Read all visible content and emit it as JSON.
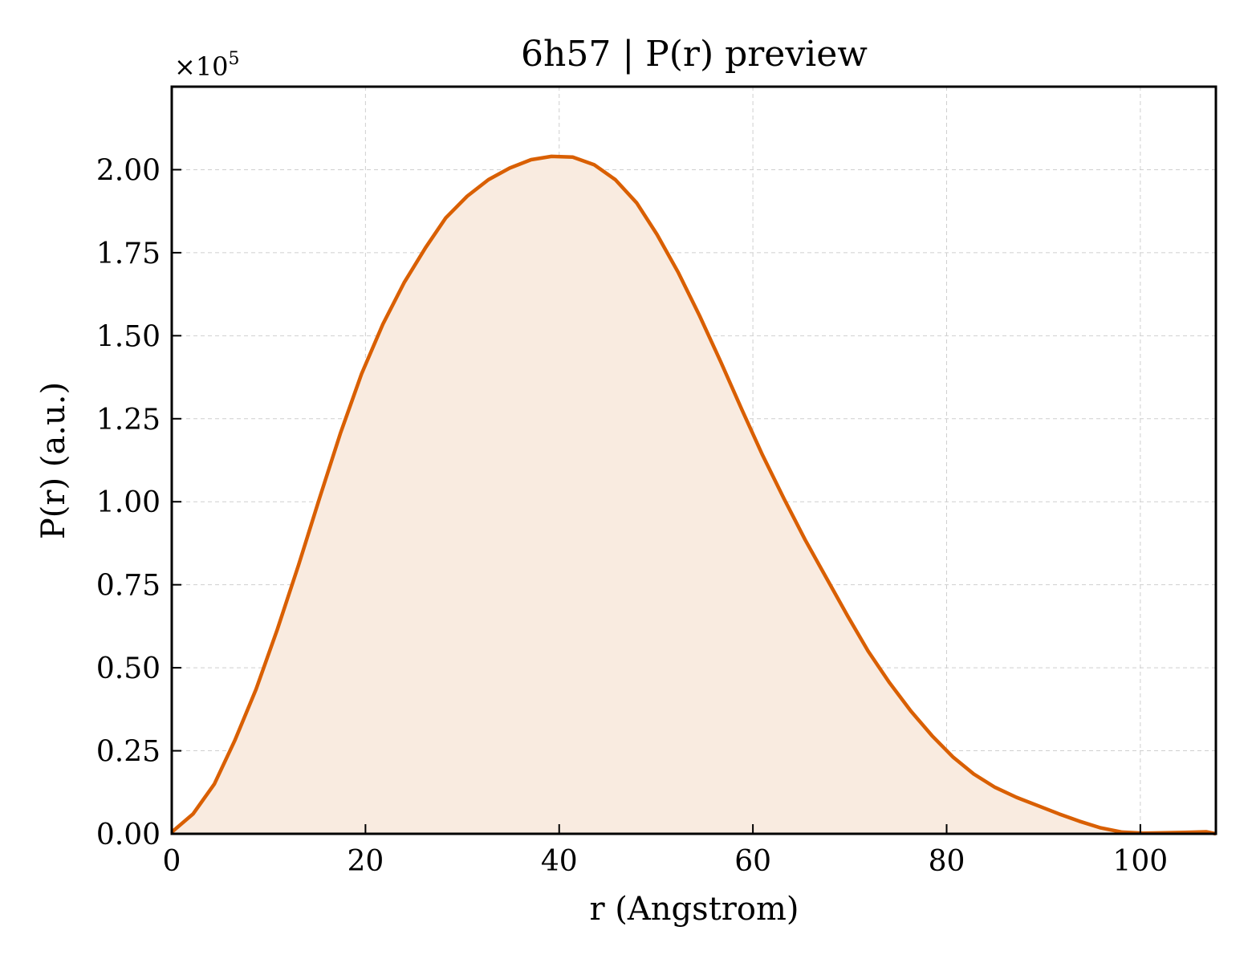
{
  "chart_data": {
    "type": "area",
    "title": "6h57 | P(r) preview",
    "xlabel": "r (Angstrom)",
    "ylabel": "P(r) (a.u.)",
    "y_multiplier_label": "×10",
    "y_multiplier_exponent": "5",
    "y_scale": 100000,
    "xlim": [
      0,
      107.8
    ],
    "ylim": [
      0,
      225000
    ],
    "x_ticks": [
      0,
      20,
      40,
      60,
      80,
      100
    ],
    "x_tick_labels": [
      "0",
      "20",
      "40",
      "60",
      "80",
      "100"
    ],
    "y_ticks": [
      0,
      25000,
      50000,
      75000,
      100000,
      125000,
      150000,
      175000,
      200000
    ],
    "y_tick_labels": [
      "0.00",
      "0.25",
      "0.50",
      "0.75",
      "1.00",
      "1.25",
      "1.50",
      "1.75",
      "2.00"
    ],
    "grid": true,
    "line_color": "#d95f02",
    "fill_color": "#f9ebe0",
    "series": [
      {
        "x": [
          0,
          2.2,
          4.4,
          6.5,
          8.7,
          10.9,
          13.1,
          15.3,
          17.4,
          19.6,
          21.8,
          24.0,
          26.2,
          28.3,
          30.5,
          32.7,
          34.9,
          37.1,
          39.2,
          41.4,
          43.6,
          45.8,
          48.0,
          50.1,
          52.3,
          54.5,
          56.7,
          58.9,
          61.0,
          63.2,
          65.4,
          67.6,
          69.8,
          71.9,
          74.1,
          76.3,
          78.5,
          80.7,
          82.8,
          85.0,
          87.2,
          89.4,
          91.6,
          93.7,
          95.9,
          98.1,
          100.3,
          102.5,
          104.6,
          106.8,
          107.8
        ],
        "y": [
          500,
          6000,
          15000,
          28000,
          43500,
          61500,
          81000,
          101500,
          120500,
          138500,
          153500,
          166000,
          176500,
          185500,
          192000,
          197000,
          200500,
          203000,
          204000,
          203800,
          201500,
          197000,
          190000,
          180500,
          169000,
          156000,
          142000,
          127500,
          114000,
          101000,
          88500,
          77000,
          65500,
          55000,
          45500,
          37000,
          29500,
          23000,
          18000,
          14000,
          11000,
          8500,
          6000,
          3800,
          1800,
          500,
          200,
          300,
          400,
          600,
          0
        ]
      }
    ]
  }
}
